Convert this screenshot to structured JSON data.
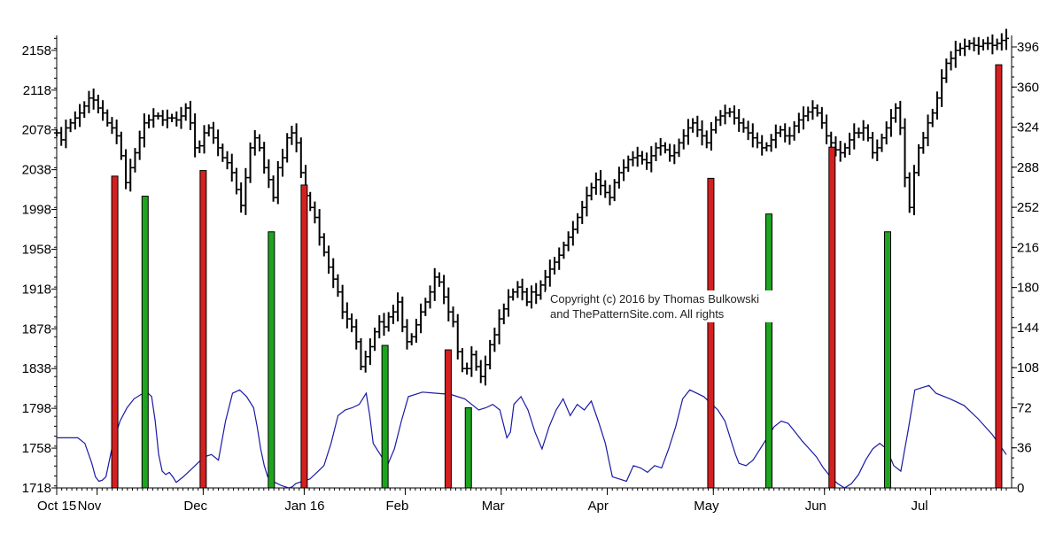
{
  "chart_data": {
    "type": "line",
    "title": "",
    "xlabel": "",
    "ylabel": "",
    "x_tick_labels": [
      "Oct 15",
      "Nov",
      "Dec",
      "Jan 16",
      "Feb",
      "Mar",
      "Apr",
      "May",
      "Jun",
      "Jul"
    ],
    "x_tick_trading_day": [
      0,
      8,
      29,
      49,
      69,
      88,
      109,
      130,
      152,
      173
    ],
    "x_range_trading_days": [
      0,
      188
    ],
    "y_left": {
      "ticks": [
        2158,
        2118,
        2078,
        2038,
        1998,
        1958,
        1918,
        1878,
        1838,
        1798,
        1758,
        1718
      ],
      "range": [
        1718,
        2173
      ]
    },
    "y_right": {
      "ticks": [
        396,
        360,
        324,
        288,
        252,
        216,
        180,
        144,
        108,
        72,
        36,
        0
      ],
      "range": [
        0,
        396
      ]
    },
    "price_close": [
      2075,
      2068,
      2080,
      2085,
      2090,
      2095,
      2102,
      2110,
      2108,
      2100,
      2095,
      2085,
      2080,
      2072,
      2052,
      2025,
      2040,
      2055,
      2070,
      2085,
      2088,
      2092,
      2092,
      2088,
      2090,
      2090,
      2088,
      2092,
      2100,
      2085,
      2060,
      2062,
      2075,
      2080,
      2070,
      2060,
      2050,
      2045,
      2035,
      2018,
      2002,
      2030,
      2060,
      2070,
      2060,
      2040,
      2028,
      2010,
      2040,
      2050,
      2070,
      2075,
      2065,
      2035,
      2012,
      2000,
      1990,
      1970,
      1955,
      1940,
      1928,
      1915,
      1895,
      1888,
      1880,
      1865,
      1840,
      1850,
      1860,
      1875,
      1885,
      1880,
      1890,
      1895,
      1905,
      1880,
      1865,
      1870,
      1882,
      1895,
      1905,
      1915,
      1930,
      1925,
      1910,
      1895,
      1885,
      1855,
      1838,
      1838,
      1852,
      1840,
      1830,
      1842,
      1862,
      1872,
      1888,
      1898,
      1910,
      1915,
      1920,
      1915,
      1905,
      1915,
      1912,
      1922,
      1930,
      1938,
      1945,
      1952,
      1962,
      1970,
      1978,
      1990,
      2000,
      2012,
      2020,
      2028,
      2022,
      2015,
      2010,
      2025,
      2035,
      2040,
      2048,
      2050,
      2052,
      2048,
      2045,
      2052,
      2060,
      2062,
      2058,
      2052,
      2055,
      2065,
      2072,
      2080,
      2085,
      2078,
      2072,
      2065,
      2078,
      2088,
      2092,
      2095,
      2096,
      2090,
      2085,
      2080,
      2075,
      2070,
      2065,
      2060,
      2062,
      2068,
      2075,
      2078,
      2072,
      2072,
      2082,
      2088,
      2092,
      2096,
      2100,
      2095,
      2085,
      2072,
      2065,
      2058,
      2055,
      2060,
      2068,
      2075,
      2075,
      2080,
      2070,
      2055,
      2060,
      2070,
      2080,
      2090,
      2100,
      2080,
      2030,
      2000,
      2035,
      2060,
      2070,
      2085,
      2095,
      2110,
      2130,
      2145,
      2150,
      2158,
      2160,
      2162,
      2165,
      2163,
      2162,
      2165,
      2165,
      2163,
      2165,
      2168,
      2170
    ],
    "blue_indicator_right_axis": {
      "name": "",
      "points": [
        [
          0,
          45
        ],
        [
          6,
          45
        ],
        [
          8,
          40
        ],
        [
          10,
          22
        ],
        [
          11,
          10
        ],
        [
          12,
          6
        ],
        [
          13,
          7
        ],
        [
          14,
          10
        ],
        [
          16,
          40
        ],
        [
          18,
          60
        ],
        [
          20,
          72
        ],
        [
          22,
          80
        ],
        [
          24,
          84
        ],
        [
          26,
          85
        ],
        [
          27,
          82
        ],
        [
          28,
          60
        ],
        [
          29,
          30
        ],
        [
          30,
          15
        ],
        [
          31,
          12
        ],
        [
          32,
          14
        ],
        [
          33,
          10
        ],
        [
          34,
          5
        ],
        [
          36,
          10
        ],
        [
          38,
          16
        ],
        [
          40,
          22
        ],
        [
          42,
          28
        ],
        [
          44,
          30
        ],
        [
          46,
          25
        ],
        [
          48,
          60
        ],
        [
          50,
          85
        ],
        [
          52,
          88
        ],
        [
          54,
          82
        ],
        [
          56,
          72
        ],
        [
          57,
          55
        ],
        [
          58,
          35
        ],
        [
          59,
          20
        ],
        [
          60,
          10
        ],
        [
          62,
          5
        ],
        [
          64,
          2
        ],
        [
          66,
          0
        ],
        [
          67,
          1
        ],
        [
          68,
          4
        ],
        [
          70,
          6
        ],
        [
          72,
          8
        ],
        [
          74,
          14
        ],
        [
          76,
          20
        ],
        [
          78,
          40
        ],
        [
          80,
          65
        ],
        [
          82,
          70
        ],
        [
          84,
          72
        ],
        [
          86,
          75
        ],
        [
          88,
          85
        ],
        [
          89,
          65
        ],
        [
          90,
          40
        ],
        [
          92,
          30
        ],
        [
          94,
          20
        ],
        [
          96,
          35
        ],
        [
          98,
          60
        ],
        [
          100,
          82
        ],
        [
          104,
          86
        ],
        [
          108,
          85
        ],
        [
          112,
          84
        ],
        [
          116,
          80
        ],
        [
          118,
          75
        ],
        [
          120,
          70
        ],
        [
          122,
          72
        ],
        [
          124,
          75
        ],
        [
          126,
          70
        ],
        [
          128,
          45
        ],
        [
          129,
          50
        ],
        [
          130,
          75
        ],
        [
          132,
          82
        ],
        [
          134,
          70
        ],
        [
          136,
          50
        ],
        [
          138,
          35
        ],
        [
          140,
          55
        ],
        [
          142,
          70
        ],
        [
          144,
          80
        ],
        [
          146,
          65
        ],
        [
          148,
          75
        ],
        [
          150,
          70
        ],
        [
          152,
          78
        ],
        [
          154,
          60
        ],
        [
          156,
          40
        ],
        [
          157,
          25
        ],
        [
          158,
          10
        ],
        [
          160,
          8
        ],
        [
          162,
          6
        ],
        [
          164,
          20
        ],
        [
          166,
          18
        ],
        [
          168,
          14
        ],
        [
          170,
          20
        ],
        [
          172,
          18
        ],
        [
          174,
          35
        ],
        [
          176,
          55
        ],
        [
          178,
          80
        ],
        [
          180,
          88
        ],
        [
          182,
          85
        ],
        [
          184,
          82
        ],
        [
          186,
          76
        ],
        [
          188,
          70
        ],
        [
          190,
          60
        ],
        [
          192,
          40
        ],
        [
          193,
          30
        ],
        [
          194,
          22
        ],
        [
          196,
          20
        ],
        [
          198,
          25
        ],
        [
          200,
          35
        ],
        [
          202,
          45
        ],
        [
          204,
          55
        ],
        [
          206,
          60
        ],
        [
          208,
          58
        ],
        [
          210,
          50
        ],
        [
          212,
          42
        ],
        [
          214,
          35
        ],
        [
          216,
          28
        ],
        [
          218,
          18
        ],
        [
          220,
          10
        ],
        [
          222,
          4
        ],
        [
          224,
          0
        ],
        [
          226,
          4
        ],
        [
          228,
          12
        ],
        [
          230,
          25
        ],
        [
          232,
          35
        ],
        [
          234,
          40
        ],
        [
          236,
          35
        ],
        [
          238,
          20
        ],
        [
          240,
          15
        ],
        [
          242,
          50
        ],
        [
          244,
          88
        ],
        [
          246,
          90
        ],
        [
          248,
          92
        ],
        [
          250,
          85
        ],
        [
          254,
          80
        ],
        [
          258,
          74
        ],
        [
          262,
          62
        ],
        [
          266,
          48
        ],
        [
          270,
          30
        ]
      ]
    },
    "signal_bars_right_axis": [
      {
        "trading_day": 11.5,
        "value": 280,
        "color": "red"
      },
      {
        "trading_day": 17.5,
        "value": 262,
        "color": "green"
      },
      {
        "trading_day": 29.0,
        "value": 285,
        "color": "red"
      },
      {
        "trading_day": 42.5,
        "value": 230,
        "color": "green"
      },
      {
        "trading_day": 49.0,
        "value": 272,
        "color": "red"
      },
      {
        "trading_day": 65.0,
        "value": 128,
        "color": "green"
      },
      {
        "trading_day": 77.5,
        "value": 124,
        "color": "red"
      },
      {
        "trading_day": 81.5,
        "value": 72,
        "color": "green"
      },
      {
        "trading_day": 129.5,
        "value": 278,
        "color": "red"
      },
      {
        "trading_day": 141.0,
        "value": 246,
        "color": "green"
      },
      {
        "trading_day": 153.5,
        "value": 306,
        "color": "red"
      },
      {
        "trading_day": 164.5,
        "value": 230,
        "color": "green"
      },
      {
        "trading_day": 186.5,
        "value": 380,
        "color": "red"
      }
    ],
    "grid": false,
    "legend": "none"
  },
  "watermark": {
    "line1": "Copyright (c) 2016 by Thomas Bulkowski",
    "line2": "and ThePatternSite.com. All rights"
  }
}
